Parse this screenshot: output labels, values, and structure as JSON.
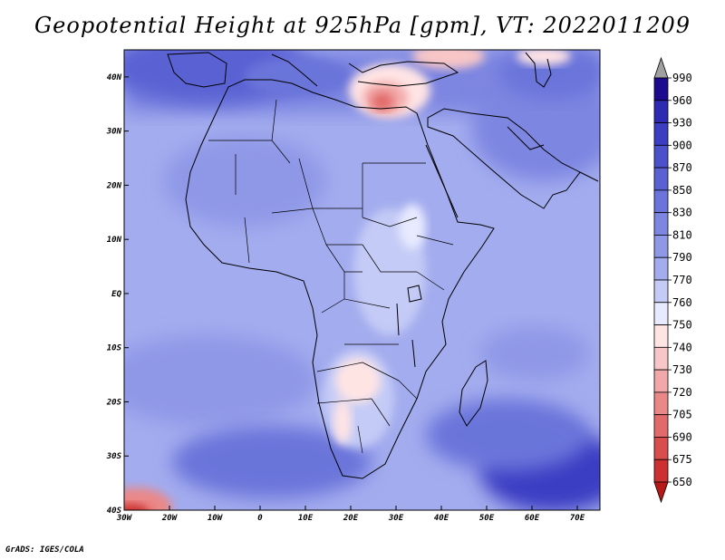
{
  "title": "Geopotential Height at 925hPa [gpm], VT: 2022011209",
  "footer": "GrADS: IGES/COLA",
  "map": {
    "region": "Africa and Middle East",
    "lon_range": [
      -30,
      75
    ],
    "lat_range": [
      -40,
      45
    ],
    "lon_ticks": [
      "30W",
      "20W",
      "10W",
      "0",
      "10E",
      "20E",
      "30E",
      "40E",
      "50E",
      "60E",
      "70E"
    ],
    "lat_ticks": [
      "40N",
      "30N",
      "20N",
      "10N",
      "EQ",
      "10S",
      "20S",
      "30S",
      "40S"
    ]
  },
  "colorbar": {
    "levels": [
      "990",
      "960",
      "930",
      "900",
      "870",
      "850",
      "830",
      "810",
      "790",
      "770",
      "760",
      "750",
      "740",
      "730",
      "720",
      "705",
      "690",
      "675",
      "650"
    ],
    "colors": [
      "#1c0b8e",
      "#2d2ab4",
      "#3b3dc2",
      "#4b50cb",
      "#5a62d3",
      "#6b74da",
      "#7d86e1",
      "#8f98e7",
      "#a3acee",
      "#c4cbf6",
      "#e8ebff",
      "#ffe4e4",
      "#f8c6c6",
      "#f2a8a8",
      "#ea8888",
      "#e26a6a",
      "#d94d4d",
      "#cc3030",
      "#b81818"
    ],
    "over_color": "#a0a0a0",
    "under_color": "#b00000"
  }
}
